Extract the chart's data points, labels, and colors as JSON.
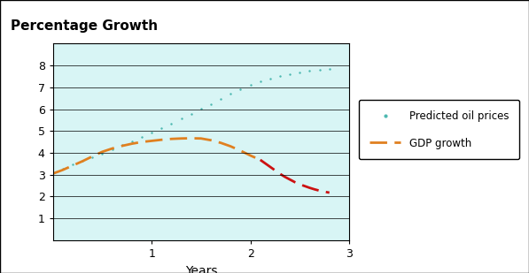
{
  "title": "Percentage Growth",
  "xlabel": "Years",
  "xlim": [
    0,
    3
  ],
  "ylim": [
    0,
    9
  ],
  "yticks": [
    1,
    2,
    3,
    4,
    5,
    6,
    7,
    8
  ],
  "xticks": [
    1,
    2,
    3
  ],
  "plot_bg_color": "#d8f5f5",
  "fig_bg_color": "#ffffff",
  "oil_color": "#4db8b0",
  "gdp_orange_color": "#e08020",
  "gdp_red_color": "#cc1111",
  "legend_labels": [
    "Predicted oil prices",
    "GDP growth"
  ],
  "oil_x": [
    0.0,
    0.1,
    0.2,
    0.3,
    0.4,
    0.5,
    0.6,
    0.7,
    0.8,
    0.9,
    1.0,
    1.1,
    1.2,
    1.3,
    1.4,
    1.5,
    1.6,
    1.7,
    1.8,
    1.9,
    2.0,
    2.1,
    2.2,
    2.3,
    2.4,
    2.5,
    2.6,
    2.7,
    2.8
  ],
  "oil_y": [
    3.1,
    3.28,
    3.46,
    3.62,
    3.8,
    3.98,
    4.16,
    4.35,
    4.54,
    4.73,
    4.93,
    5.13,
    5.35,
    5.57,
    5.79,
    6.01,
    6.24,
    6.47,
    6.7,
    6.93,
    7.1,
    7.26,
    7.4,
    7.52,
    7.62,
    7.7,
    7.76,
    7.8,
    7.83
  ],
  "gdp_orange_x": [
    0.0,
    0.1,
    0.2,
    0.3,
    0.4,
    0.5,
    0.6,
    0.7,
    0.8,
    0.9,
    1.0,
    1.1,
    1.2,
    1.3,
    1.4,
    1.5,
    1.6,
    1.7,
    1.8,
    1.9,
    2.0,
    2.05
  ],
  "gdp_orange_y": [
    3.05,
    3.22,
    3.42,
    3.62,
    3.84,
    4.05,
    4.2,
    4.32,
    4.42,
    4.5,
    4.55,
    4.6,
    4.64,
    4.66,
    4.67,
    4.66,
    4.58,
    4.46,
    4.3,
    4.1,
    3.88,
    3.78
  ],
  "gdp_red_x": [
    2.1,
    2.15,
    2.2,
    2.25,
    2.3,
    2.35,
    2.4,
    2.45,
    2.5,
    2.55,
    2.6,
    2.65,
    2.7,
    2.75,
    2.8
  ],
  "gdp_red_y": [
    3.68,
    3.52,
    3.36,
    3.2,
    3.04,
    2.9,
    2.78,
    2.66,
    2.56,
    2.48,
    2.4,
    2.33,
    2.27,
    2.22,
    2.18
  ],
  "title_fontsize": 11,
  "tick_fontsize": 9,
  "xlabel_fontsize": 10
}
